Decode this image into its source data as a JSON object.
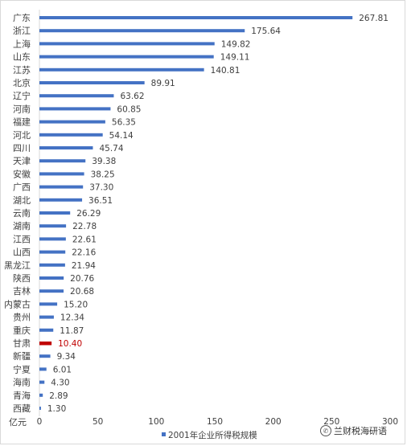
{
  "colors": {
    "bar": "#4472c4",
    "highlight": "#c00000",
    "label": "#404040",
    "axis": "#d9d9d9"
  },
  "watermark": {
    "text": "兰财税海研语",
    "icon": "wechat-icon"
  },
  "chart_data": {
    "type": "bar",
    "orientation": "horizontal",
    "categories": [
      "广东",
      "浙江",
      "上海",
      "山东",
      "江苏",
      "北京",
      "辽宁",
      "河南",
      "福建",
      "河北",
      "四川",
      "天津",
      "安徽",
      "广西",
      "湖北",
      "云南",
      "湖南",
      "江西",
      "山西",
      "黑龙江",
      "陕西",
      "吉林",
      "内蒙古",
      "贵州",
      "重庆",
      "甘肃",
      "新疆",
      "宁夏",
      "海南",
      "青海",
      "西藏"
    ],
    "series": [
      {
        "name": "2001年企业所得税规模",
        "values": [
          267.81,
          175.64,
          149.82,
          149.11,
          140.81,
          89.91,
          63.62,
          60.85,
          56.35,
          54.14,
          45.74,
          39.38,
          38.25,
          37.3,
          36.51,
          26.29,
          22.78,
          22.61,
          22.16,
          21.94,
          20.76,
          20.68,
          15.2,
          12.34,
          11.87,
          10.4,
          9.34,
          6.01,
          4.3,
          2.89,
          1.3
        ],
        "value_labels": [
          "267.81",
          "175.64",
          "149.82",
          "149.11",
          "140.81",
          "89.91",
          "63.62",
          "60.85",
          "56.35",
          "54.14",
          "45.74",
          "39.38",
          "38.25",
          "37.30",
          "36.51",
          "26.29",
          "22.78",
          "22.61",
          "22.16",
          "21.94",
          "20.76",
          "20.68",
          "15.20",
          "12.34",
          "11.87",
          "10.40",
          "9.34",
          "6.01",
          "4.30",
          "2.89",
          "1.30"
        ]
      }
    ],
    "highlight_category": "甘肃",
    "xlim": [
      0,
      300
    ],
    "xticks": [
      "0",
      "50",
      "100",
      "150",
      "200",
      "250",
      "300"
    ],
    "unit_label": "亿元",
    "legend_position": "bottom",
    "grid": false
  }
}
